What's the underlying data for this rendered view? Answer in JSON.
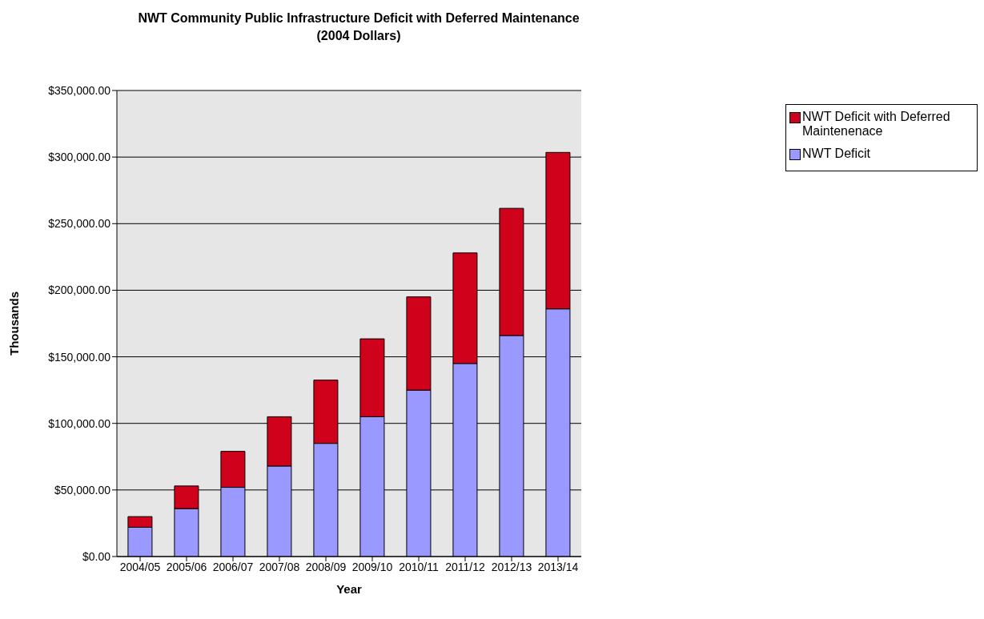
{
  "chart_data": {
    "type": "bar",
    "title": "NWT Community Public Infrastructure Deficit with Deferred Maintenance\n(2004 Dollars)",
    "xlabel": "Year",
    "ylabel": "Thousands",
    "categories": [
      "2004/05",
      "2005/06",
      "2006/07",
      "2007/08",
      "2008/09",
      "2009/10",
      "2010/11",
      "2011/12",
      "2012/13",
      "2013/14"
    ],
    "stacked": true,
    "series": [
      {
        "name": "NWT Deficit",
        "color": "#9999ff",
        "values": [
          22000,
          36000,
          52000,
          68000,
          85000,
          105000,
          125000,
          145000,
          166000,
          186000
        ]
      },
      {
        "name": "NWT Deficit with Deferred Maintenenace",
        "color": "#d0021b",
        "values": [
          8000,
          17000,
          27000,
          37000,
          47500,
          58500,
          70000,
          83000,
          95500,
          117500
        ]
      }
    ],
    "ylim": [
      0,
      350000
    ],
    "yticks": [
      {
        "value": 0,
        "label": "$0.00"
      },
      {
        "value": 50000,
        "label": "$50,000.00"
      },
      {
        "value": 100000,
        "label": "$100,000.00"
      },
      {
        "value": 150000,
        "label": "$150,000.00"
      },
      {
        "value": 200000,
        "label": "$200,000.00"
      },
      {
        "value": 250000,
        "label": "$250,000.00"
      },
      {
        "value": 300000,
        "label": "$300,000.00"
      },
      {
        "value": 350000,
        "label": "$350,000.00"
      }
    ],
    "grid": "y",
    "legend": "top right"
  }
}
